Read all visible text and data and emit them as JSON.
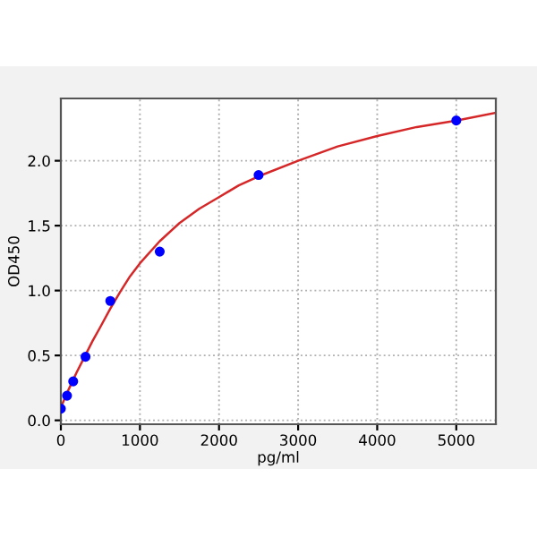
{
  "chart_data": {
    "type": "scatter",
    "xlabel": "pg/ml",
    "ylabel": "OD450",
    "series": [
      {
        "color": "#0000ff",
        "marker": "circle",
        "x": [
          0,
          78,
          156,
          312,
          625,
          1250,
          2500,
          5000
        ],
        "values": [
          0.09,
          0.19,
          0.3,
          0.49,
          0.92,
          1.3,
          1.89,
          2.31
        ]
      },
      {
        "type": "line",
        "color": "#d62728",
        "marker": "none",
        "line_style": "solid",
        "x": [
          0,
          100,
          200,
          300,
          400,
          500,
          625,
          750,
          875,
          1000,
          1250,
          1500,
          1750,
          2000,
          2250,
          2500,
          3000,
          3500,
          4000,
          4500,
          5000,
          5500
        ],
        "values": [
          0.1,
          0.24,
          0.37,
          0.49,
          0.61,
          0.72,
          0.86,
          0.99,
          1.11,
          1.21,
          1.38,
          1.52,
          1.63,
          1.72,
          1.81,
          1.88,
          2.0,
          2.11,
          2.19,
          2.26,
          2.31,
          2.37
        ]
      }
    ],
    "xlim": [
      0,
      5500
    ],
    "xticks": [
      0,
      1000,
      2000,
      3000,
      4000,
      5000
    ],
    "ylim": [
      -0.03,
      2.48
    ],
    "yticks": [
      {
        "value": 0,
        "label": "0.0"
      },
      0.5,
      {
        "value": 1,
        "label": "1.0"
      },
      1.5,
      {
        "value": 2,
        "label": "2.0"
      }
    ],
    "grid": true
  }
}
